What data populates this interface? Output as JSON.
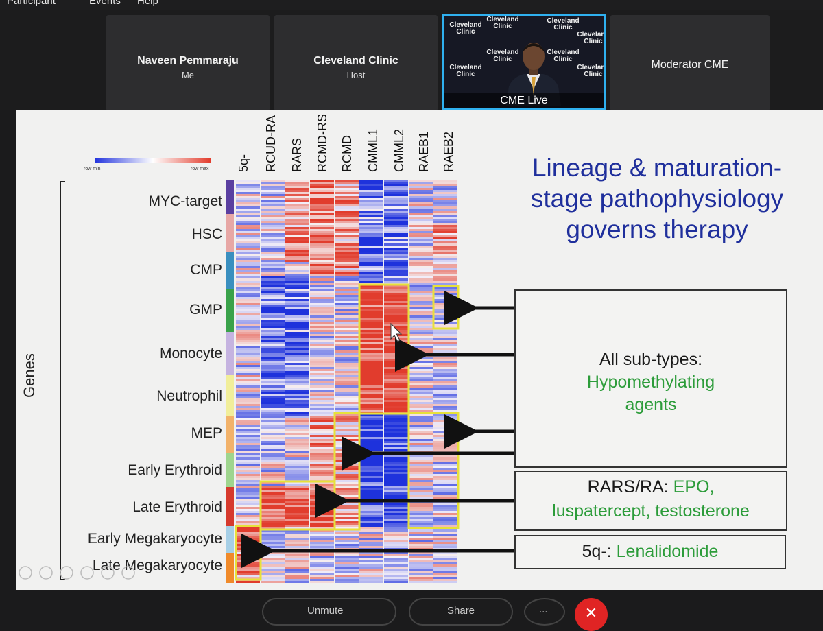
{
  "menu": {
    "items": [
      "Participant",
      "Events",
      "Help"
    ]
  },
  "participants": [
    {
      "name": "Naveen Pemmaraju",
      "role": "Me"
    },
    {
      "name": "Cleveland Clinic",
      "role": "Host"
    },
    {
      "name": "",
      "role": "",
      "video_label": "CME Live"
    },
    {
      "name": "Moderator CME",
      "role": ""
    }
  ],
  "backdrop_brand": [
    "Cleveland",
    "Clinic"
  ],
  "slide": {
    "title": "Lineage & maturation-stage pathophysiology governs therapy",
    "title_lines": [
      "Lineage & maturation-",
      "stage pathophysiology",
      "governs therapy"
    ],
    "legend": {
      "min_label": "row min",
      "max_label": "row max"
    },
    "y_axis_label": "Genes",
    "columns": [
      "5q-",
      "RCUD-RA",
      "RARS",
      "RCMD-RS",
      "RCMD",
      "CMML1",
      "CMML2",
      "RAEB1",
      "RAEB2"
    ],
    "rows": [
      "MYC-target",
      "HSC",
      "CMP",
      "GMP",
      "Monocyte",
      "Neutrophil",
      "MEP",
      "Early Erythroid",
      "Late Erythroid",
      "Early Megakaryocyte",
      "Late Megakaryocyte"
    ],
    "callouts": {
      "hma_line1": "All sub-types:",
      "hma_line2": "Hypomethylating",
      "hma_line3": "agents",
      "epo_prefix": "RARS/RA: ",
      "epo_green1": "EPO,",
      "epo_line2": "luspatercept, testosterone",
      "len_prefix": "5q-: ",
      "len_green": "Lenalidomide"
    }
  },
  "controls": {
    "unmute": "Unmute",
    "share": "Share",
    "more": "...",
    "leave": "✕"
  },
  "colors": {
    "accent": "#2fb0ef",
    "heat_low": "#2233dd",
    "heat_high": "#e23a2a",
    "highlight": "#e7e13a",
    "title_blue": "#1f2f9c",
    "green_text": "#2c9c3a"
  }
}
